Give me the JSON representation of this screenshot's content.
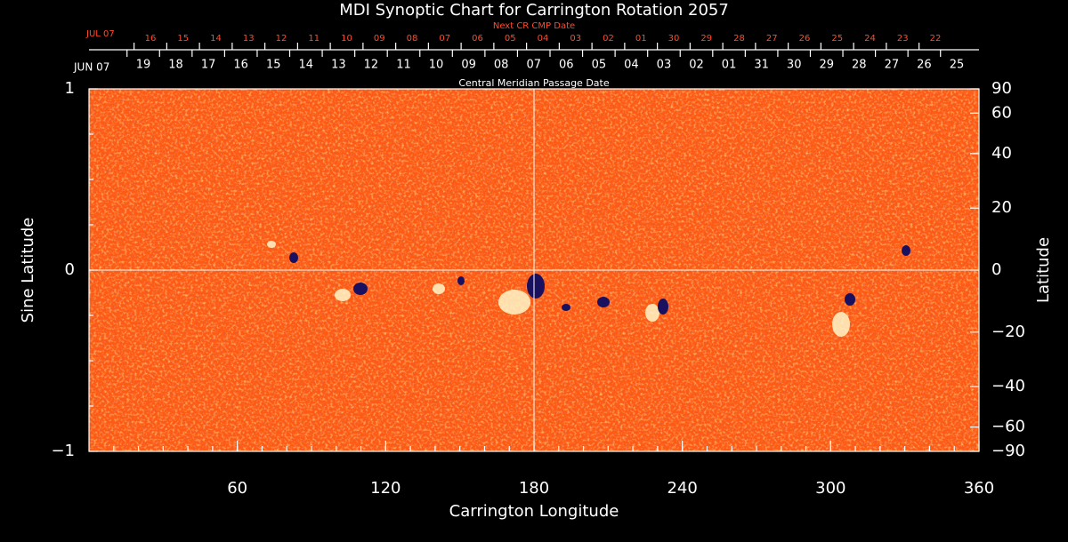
{
  "chart_data": {
    "type": "synoptic-map",
    "title": "MDI Synoptic Chart for Carrington Rotation 2057",
    "xlabel": "Carrington Longitude",
    "ylabel": "Sine Latitude",
    "y2label": "Latitude",
    "xlim": [
      0,
      360
    ],
    "xticks": [
      60,
      120,
      180,
      240,
      300,
      360
    ],
    "ylim": [
      -1,
      1
    ],
    "yticks": [
      {
        "value": -1,
        "label": "−1"
      },
      0,
      1
    ],
    "y2lim": [
      -90,
      90
    ],
    "y2scale": "sine",
    "y2ticks": [
      90,
      60,
      40,
      20,
      0,
      {
        "value": -20,
        "label": "−20"
      },
      {
        "value": -40,
        "label": "−40"
      },
      {
        "value": -60,
        "label": "−60"
      },
      {
        "value": -90,
        "label": "−90"
      }
    ],
    "date_axis": {
      "label": "Central Meridian Passage Date",
      "start": "JUN 07",
      "days": [
        "19",
        "18",
        "17",
        "16",
        "15",
        "14",
        "13",
        "12",
        "11",
        "10",
        "09",
        "08",
        "07",
        "06",
        "05",
        "04",
        "03",
        "02",
        "01",
        "31",
        "30",
        "29",
        "28",
        "27",
        "26",
        "25"
      ]
    },
    "next_date_axis": {
      "label": "Next CR CMP Date",
      "start": "JUL 07",
      "days": [
        "16",
        "15",
        "14",
        "13",
        "12",
        "11",
        "10",
        "09",
        "08",
        "07",
        "06",
        "05",
        "04",
        "03",
        "02",
        "01",
        "30",
        "29",
        "28",
        "27",
        "26",
        "25",
        "24",
        "23",
        "22"
      ]
    }
  }
}
